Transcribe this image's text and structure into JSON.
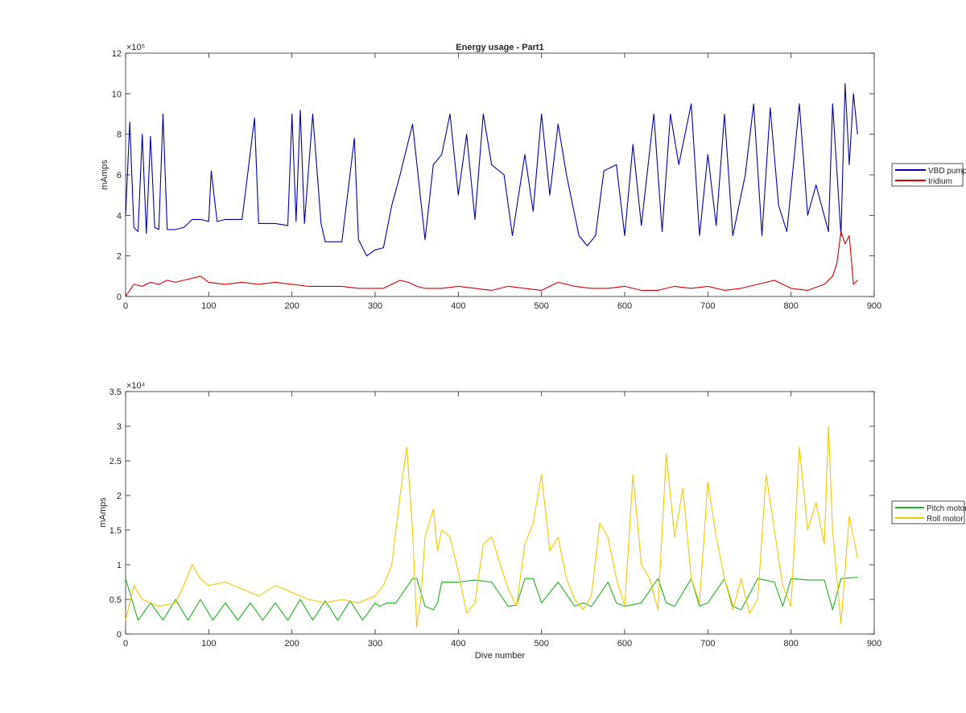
{
  "chart_data": [
    {
      "type": "line",
      "title": "Energy usage - Part1",
      "xlabel": "",
      "ylabel": "mAmps",
      "xlim": [
        0,
        900
      ],
      "ylim": [
        0,
        1200000
      ],
      "exponent_label": "×10⁵",
      "xticks": [
        0,
        100,
        200,
        300,
        400,
        500,
        600,
        700,
        800,
        900
      ],
      "yticks": [
        0,
        200000,
        400000,
        600000,
        800000,
        1000000,
        1200000
      ],
      "ytick_labels": [
        "0",
        "2",
        "4",
        "6",
        "8",
        "10",
        "12"
      ],
      "legend_position": "outside-right",
      "series": [
        {
          "name": "VBD pump",
          "color": "#0000b0",
          "x": [
            0,
            5,
            10,
            15,
            20,
            25,
            30,
            35,
            40,
            45,
            50,
            60,
            70,
            80,
            90,
            100,
            103,
            110,
            120,
            140,
            155,
            160,
            180,
            195,
            200,
            205,
            210,
            215,
            225,
            235,
            240,
            260,
            275,
            280,
            290,
            300,
            310,
            320,
            330,
            345,
            360,
            370,
            380,
            390,
            400,
            410,
            420,
            430,
            440,
            455,
            465,
            480,
            490,
            500,
            510,
            520,
            530,
            545,
            555,
            565,
            575,
            590,
            600,
            610,
            620,
            635,
            645,
            655,
            665,
            680,
            690,
            700,
            710,
            720,
            730,
            745,
            755,
            765,
            775,
            785,
            795,
            810,
            820,
            830,
            845,
            850,
            860,
            865,
            870,
            875,
            880
          ],
          "values": [
            400000,
            860000,
            340000,
            320000,
            800000,
            310000,
            790000,
            340000,
            330000,
            900000,
            330000,
            330000,
            340000,
            380000,
            380000,
            370000,
            620000,
            370000,
            380000,
            380000,
            880000,
            360000,
            360000,
            350000,
            900000,
            370000,
            920000,
            360000,
            900000,
            360000,
            270000,
            270000,
            780000,
            280000,
            200000,
            230000,
            240000,
            450000,
            600000,
            850000,
            280000,
            650000,
            700000,
            900000,
            500000,
            800000,
            380000,
            900000,
            650000,
            600000,
            300000,
            700000,
            420000,
            900000,
            500000,
            850000,
            600000,
            300000,
            250000,
            300000,
            620000,
            650000,
            300000,
            750000,
            350000,
            900000,
            320000,
            900000,
            650000,
            950000,
            300000,
            700000,
            350000,
            900000,
            300000,
            600000,
            950000,
            300000,
            930000,
            450000,
            320000,
            950000,
            400000,
            550000,
            320000,
            950000,
            300000,
            1050000,
            650000,
            1000000,
            800000
          ]
        },
        {
          "name": "Iridium",
          "color": "#d00000",
          "x": [
            0,
            10,
            20,
            30,
            40,
            50,
            60,
            70,
            80,
            90,
            100,
            120,
            140,
            160,
            180,
            200,
            220,
            240,
            260,
            280,
            300,
            310,
            320,
            330,
            340,
            350,
            360,
            380,
            400,
            420,
            440,
            460,
            480,
            500,
            520,
            540,
            560,
            580,
            600,
            620,
            640,
            660,
            680,
            700,
            720,
            740,
            760,
            780,
            800,
            820,
            840,
            850,
            855,
            860,
            865,
            870,
            875,
            880
          ],
          "values": [
            0,
            60000,
            50000,
            70000,
            60000,
            80000,
            70000,
            80000,
            90000,
            100000,
            70000,
            60000,
            70000,
            60000,
            70000,
            60000,
            50000,
            50000,
            50000,
            40000,
            40000,
            40000,
            60000,
            80000,
            70000,
            50000,
            40000,
            40000,
            50000,
            40000,
            30000,
            50000,
            40000,
            30000,
            70000,
            50000,
            40000,
            40000,
            50000,
            30000,
            30000,
            50000,
            40000,
            50000,
            30000,
            40000,
            60000,
            80000,
            40000,
            30000,
            60000,
            100000,
            160000,
            320000,
            260000,
            300000,
            60000,
            80000
          ]
        }
      ]
    },
    {
      "type": "line",
      "title": "",
      "xlabel": "Dive number",
      "ylabel": "mAmps",
      "xlim": [
        0,
        900
      ],
      "ylim": [
        0,
        35000
      ],
      "exponent_label": "×10⁴",
      "xticks": [
        0,
        100,
        200,
        300,
        400,
        500,
        600,
        700,
        800,
        900
      ],
      "yticks": [
        0,
        5000,
        10000,
        15000,
        20000,
        25000,
        30000,
        35000
      ],
      "ytick_labels": [
        "0",
        "0.5",
        "1",
        "1.5",
        "2",
        "2.5",
        "3",
        "3.5"
      ],
      "legend_position": "outside-right",
      "series": [
        {
          "name": "Pitch motor",
          "color": "#20b020",
          "x": [
            0,
            10,
            15,
            30,
            45,
            60,
            75,
            90,
            105,
            120,
            135,
            150,
            165,
            180,
            195,
            210,
            225,
            240,
            255,
            270,
            285,
            300,
            305,
            315,
            325,
            345,
            350,
            360,
            370,
            375,
            380,
            400,
            420,
            440,
            460,
            470,
            480,
            490,
            500,
            520,
            540,
            550,
            560,
            580,
            590,
            600,
            620,
            640,
            650,
            660,
            680,
            690,
            700,
            720,
            730,
            740,
            760,
            780,
            790,
            800,
            820,
            840,
            850,
            860,
            880
          ],
          "values": [
            8000,
            4000,
            2000,
            4500,
            2000,
            5000,
            2000,
            5000,
            2000,
            4500,
            2000,
            4500,
            2000,
            4500,
            2000,
            5000,
            2000,
            4800,
            2000,
            4800,
            2000,
            4500,
            4000,
            4500,
            4500,
            8000,
            8000,
            4000,
            3500,
            4500,
            7500,
            7500,
            7800,
            7500,
            4000,
            4200,
            8000,
            8000,
            4500,
            7500,
            4000,
            4500,
            4000,
            7500,
            4500,
            4000,
            4500,
            8000,
            4500,
            4000,
            8000,
            4000,
            4500,
            8000,
            4000,
            3500,
            8000,
            7500,
            4000,
            8000,
            7800,
            7800,
            3500,
            8000,
            8200
          ]
        },
        {
          "name": "Roll motor",
          "color": "#f0c800",
          "x": [
            0,
            10,
            20,
            40,
            60,
            70,
            80,
            90,
            100,
            120,
            140,
            160,
            180,
            200,
            220,
            240,
            260,
            280,
            300,
            310,
            320,
            330,
            338,
            345,
            350,
            355,
            360,
            370,
            375,
            380,
            390,
            400,
            410,
            420,
            430,
            440,
            460,
            470,
            480,
            490,
            500,
            510,
            520,
            530,
            540,
            550,
            560,
            570,
            580,
            590,
            600,
            610,
            620,
            630,
            640,
            650,
            660,
            670,
            680,
            690,
            700,
            710,
            720,
            730,
            740,
            750,
            760,
            770,
            780,
            790,
            800,
            810,
            820,
            830,
            840,
            845,
            850,
            860,
            870,
            880
          ],
          "values": [
            2000,
            7000,
            5000,
            4000,
            4500,
            7000,
            10000,
            8000,
            7000,
            7500,
            6500,
            5500,
            7000,
            6000,
            5000,
            4500,
            5000,
            4500,
            5500,
            7000,
            10000,
            20000,
            27000,
            15000,
            1000,
            5000,
            14000,
            18000,
            12000,
            15000,
            14000,
            9000,
            3000,
            4500,
            13000,
            14000,
            6500,
            4000,
            13000,
            16000,
            23000,
            12000,
            14000,
            8000,
            5000,
            3500,
            5500,
            16000,
            14000,
            8000,
            4000,
            23000,
            10000,
            8000,
            3500,
            26000,
            14000,
            21000,
            8000,
            4500,
            22000,
            14000,
            8000,
            3500,
            8000,
            3000,
            5000,
            23000,
            15000,
            7000,
            4000,
            27000,
            15000,
            19000,
            13000,
            30000,
            15000,
            1500,
            17000,
            11000
          ]
        }
      ]
    }
  ]
}
